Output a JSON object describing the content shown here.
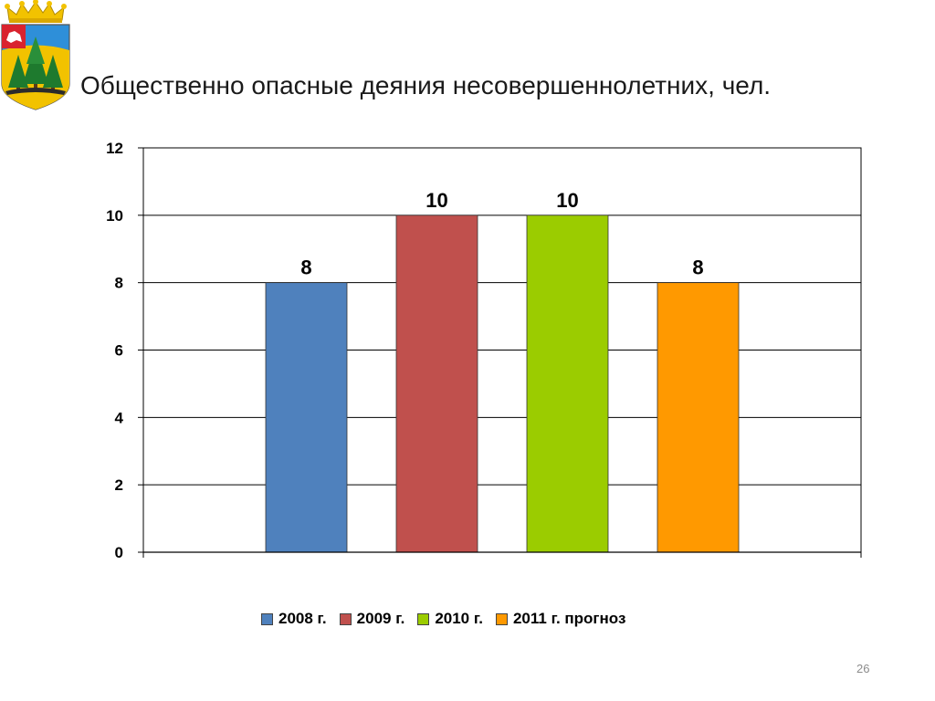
{
  "slide": {
    "title": "Общественно опасные деяния несовершеннолетних, чел.",
    "page_number": "26",
    "emblem_icon": "coat-of-arms-icon"
  },
  "chart_data": {
    "type": "bar",
    "title": "",
    "xlabel": "",
    "ylabel": "",
    "ylim": [
      0,
      12
    ],
    "yticks": [
      0,
      2,
      4,
      6,
      8,
      10,
      12
    ],
    "grid": true,
    "legend_position": "bottom",
    "series": [
      {
        "name": "2008 г.",
        "value": 8,
        "color": "#4F81BD"
      },
      {
        "name": "2009 г.",
        "value": 10,
        "color": "#C0504D"
      },
      {
        "name": "2010 г.",
        "value": 10,
        "color": "#9BCC00"
      },
      {
        "name": "2011 г. прогноз",
        "value": 8,
        "color": "#FF9900"
      }
    ]
  }
}
